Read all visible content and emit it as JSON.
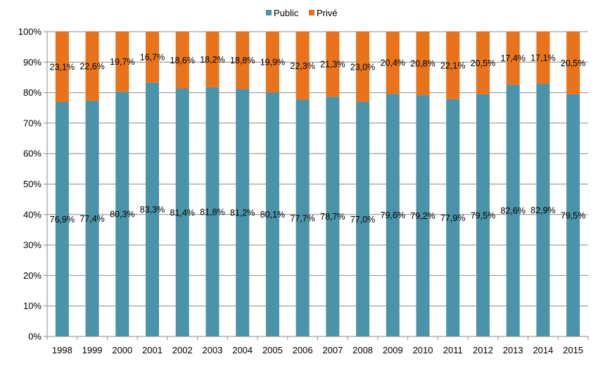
{
  "chart_data": {
    "type": "bar",
    "stacked": true,
    "percent_stacked": true,
    "title": "",
    "xlabel": "",
    "ylabel": "",
    "ylim": [
      0,
      100
    ],
    "y_ticks": [
      "0%",
      "10%",
      "20%",
      "30%",
      "40%",
      "50%",
      "60%",
      "70%",
      "80%",
      "90%",
      "100%"
    ],
    "grid": true,
    "legend_position": "top-center",
    "categories": [
      "1998",
      "1999",
      "2000",
      "2001",
      "2002",
      "2003",
      "2004",
      "2005",
      "2006",
      "2007",
      "2008",
      "2009",
      "2010",
      "2011",
      "2012",
      "2013",
      "2014",
      "2015"
    ],
    "series": [
      {
        "name": "Public",
        "color": "#4a93a8",
        "values": [
          76.9,
          77.4,
          80.3,
          83.3,
          81.4,
          81.8,
          81.2,
          80.1,
          77.7,
          78.7,
          77.0,
          79.6,
          79.2,
          77.9,
          79.5,
          82.6,
          82.9,
          79.5
        ],
        "labels": [
          "76,9%",
          "77,4%",
          "80,3%",
          "83,3%",
          "81,4%",
          "81,8%",
          "81,2%",
          "80,1%",
          "77,7%",
          "78,7%",
          "77,0%",
          "79,6%",
          "79,2%",
          "77,9%",
          "79,5%",
          "82,6%",
          "82,9%",
          "79,5%"
        ]
      },
      {
        "name": "Privé",
        "color": "#e8731b",
        "values": [
          23.1,
          22.6,
          19.7,
          16.7,
          18.6,
          18.2,
          18.8,
          19.9,
          22.3,
          21.3,
          23.0,
          20.4,
          20.8,
          22.1,
          20.5,
          17.4,
          17.1,
          20.5
        ],
        "labels": [
          "23,1%",
          "22,6%",
          "19,7%",
          "16,7%",
          "18,6%",
          "18,2%",
          "18,8%",
          "19,9%",
          "22,3%",
          "21,3%",
          "23,0%",
          "20,4%",
          "20,8%",
          "22,1%",
          "20,5%",
          "17,4%",
          "17,1%",
          "20,5%"
        ]
      }
    ]
  }
}
